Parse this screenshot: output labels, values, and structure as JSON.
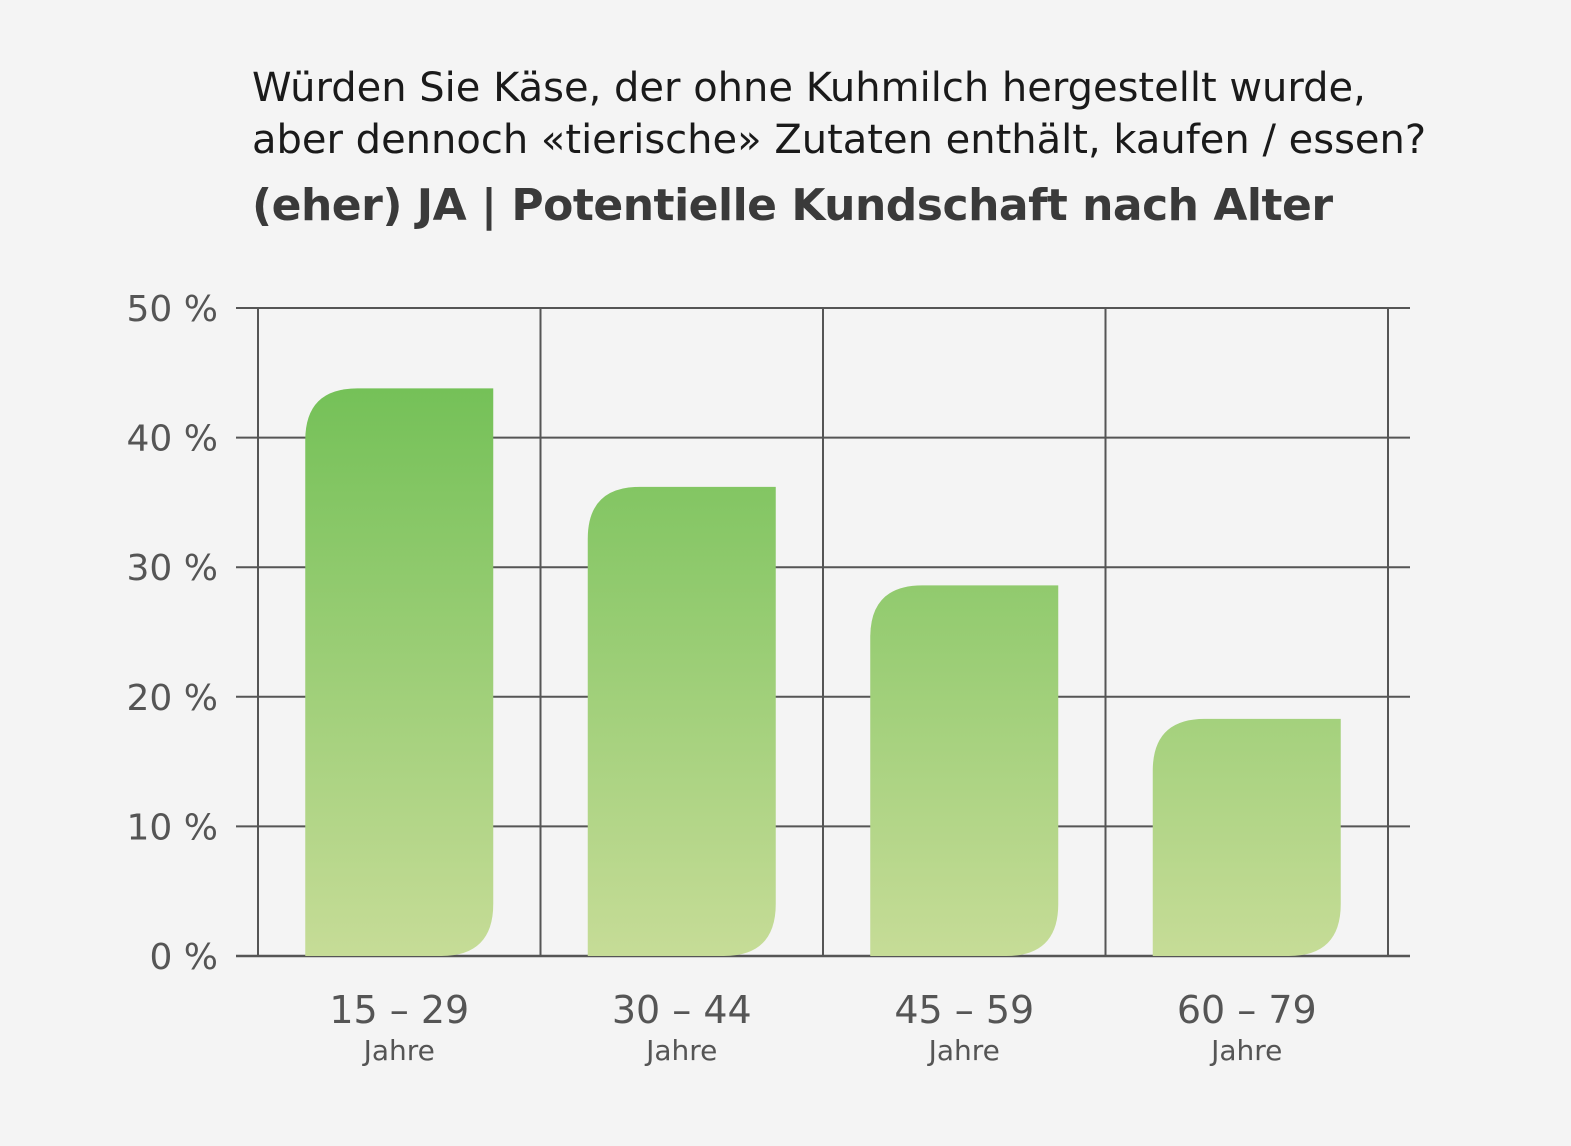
{
  "title": "Würden Sie Käse, der ohne Kuhmilch hergestellt wurde,\naber dennoch «tierische» Zutaten enthält, kaufen / essen?",
  "title_line1": "Würden Sie Käse, der ohne Kuhmilch hergestellt wurde,",
  "title_line2": "aber dennoch «tierische» Zutaten enthält, kaufen / essen?",
  "subtitle": "(eher) JA | Potentielle Kundschaft nach Alter",
  "colors": {
    "background": "#f4f4f4",
    "grid": "#555555",
    "bar_top": "#69bd4f",
    "bar_bottom": "#c6dc97",
    "text": "#555555"
  },
  "chart_data": {
    "type": "bar",
    "categories": [
      "15 – 29",
      "30 – 44",
      "45 – 59",
      "60 – 79"
    ],
    "category_sublabel": "Jahre",
    "values": [
      43.8,
      36.2,
      28.6,
      18.3
    ],
    "ylim": [
      0,
      50
    ],
    "yticks": [
      0,
      10,
      20,
      30,
      40,
      50
    ],
    "ytick_labels": [
      "0 %",
      "10 %",
      "20 %",
      "30 %",
      "40 %",
      "50 %"
    ],
    "grid": true,
    "xlabel": "",
    "ylabel": ""
  }
}
